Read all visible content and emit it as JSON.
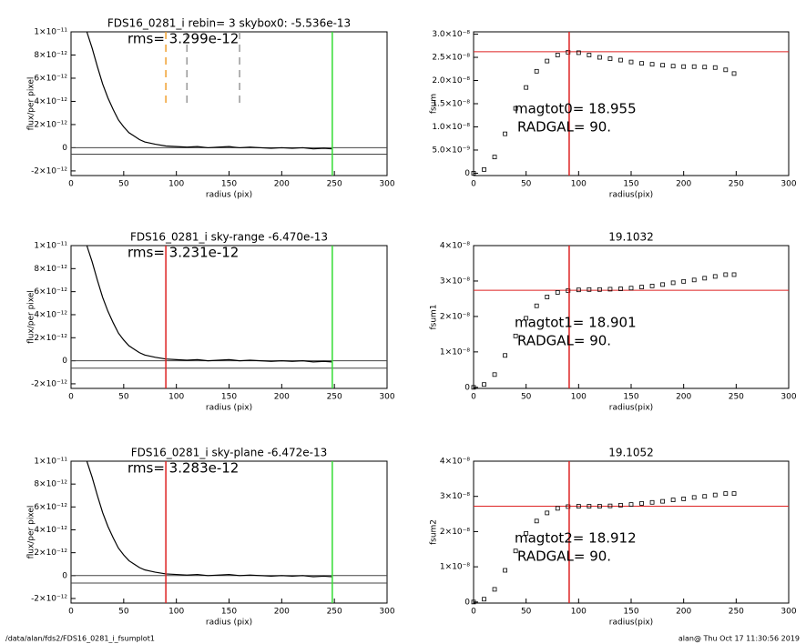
{
  "chart_data": [
    {
      "type": "line",
      "title": "FDS16_0281_i rebin= 3    skybox0: -5.536e-13",
      "xlabel": "radius (pix)",
      "ylabel": "flux/per pixel",
      "annotations": [
        "rms= 3.299e-12"
      ],
      "color": "#000000",
      "x": [
        15,
        20,
        25,
        30,
        35,
        40,
        45,
        50,
        55,
        60,
        65,
        70,
        75,
        80,
        90,
        100,
        110,
        120,
        130,
        140,
        150,
        160,
        170,
        180,
        190,
        200,
        210,
        220,
        230,
        240,
        248
      ],
      "values": [
        1e-11,
        8.6e-12,
        7e-12,
        5.5e-12,
        4.3e-12,
        3.3e-12,
        2.4e-12,
        1.8e-12,
        1.3e-12,
        1e-12,
        7e-13,
        5e-13,
        4e-13,
        3e-13,
        1.5e-13,
        1e-13,
        5e-14,
        1e-13,
        0,
        5e-14,
        1e-13,
        0,
        5e-14,
        0,
        -5e-14,
        0,
        -5e-14,
        0,
        -1e-13,
        -5e-14,
        -1e-13
      ],
      "xlim": [
        0,
        300
      ],
      "xticks": [
        0,
        50,
        100,
        150,
        200,
        250,
        300
      ],
      "ylim": [
        -2.4e-12,
        1e-11
      ],
      "yticks": [
        {
          "value": -2e-12,
          "label": "-2×10⁻¹²"
        },
        0,
        {
          "value": 2e-12,
          "label": "2×10⁻¹²"
        },
        {
          "value": 4e-12,
          "label": "4×10⁻¹²"
        },
        {
          "value": 6e-12,
          "label": "6×10⁻¹²"
        },
        {
          "value": 8e-12,
          "label": "8×10⁻¹²"
        },
        {
          "value": 1e-11,
          "label": "1×10⁻¹¹"
        }
      ],
      "vlines": [
        {
          "x": 90,
          "color": "#f0a030",
          "dash": true
        },
        {
          "x": 110,
          "color": "#999999",
          "dash": true
        },
        {
          "x": 160,
          "color": "#999999",
          "dash": true
        },
        {
          "x": 248,
          "color": "#33dd33",
          "dash": false
        }
      ],
      "hlines": [
        {
          "y": 0,
          "color": "#444444"
        },
        {
          "y": -5.536e-13,
          "color": "#444444"
        }
      ]
    },
    {
      "type": "line",
      "title": "",
      "xlabel": "radius(pix)",
      "ylabel": "fsum",
      "annotations": [
        "magtot0=  18.955",
        "RADGAL=     90."
      ],
      "color": "#000000",
      "marker": "square",
      "x": [
        0,
        10,
        20,
        30,
        40,
        50,
        60,
        70,
        80,
        90,
        100,
        110,
        120,
        130,
        140,
        150,
        160,
        170,
        180,
        190,
        200,
        210,
        220,
        230,
        240,
        248
      ],
      "values": [
        0,
        8e-10,
        3.5e-09,
        8.5e-09,
        1.4e-08,
        1.85e-08,
        2.2e-08,
        2.42e-08,
        2.55e-08,
        2.61e-08,
        2.6e-08,
        2.55e-08,
        2.5e-08,
        2.47e-08,
        2.44e-08,
        2.4e-08,
        2.37e-08,
        2.35e-08,
        2.33e-08,
        2.31e-08,
        2.3e-08,
        2.3e-08,
        2.29e-08,
        2.28e-08,
        2.23e-08,
        2.15e-08
      ],
      "xlim": [
        0,
        300
      ],
      "xticks": [
        0,
        50,
        100,
        150,
        200,
        250,
        300
      ],
      "ylim": [
        -5e-10,
        3.05e-08
      ],
      "yticks": [
        0,
        {
          "value": 5e-09,
          "label": "5.0×10⁻⁹"
        },
        {
          "value": 1e-08,
          "label": "1.0×10⁻⁸"
        },
        {
          "value": 1.5e-08,
          "label": "1.5×10⁻⁸"
        },
        {
          "value": 2e-08,
          "label": "2.0×10⁻⁸"
        },
        {
          "value": 2.5e-08,
          "label": "2.5×10⁻⁸"
        },
        {
          "value": 3e-08,
          "label": "3.0×10⁻⁸"
        }
      ],
      "vlines": [
        {
          "x": 91,
          "color": "#dd2222",
          "dash": false
        }
      ],
      "hlines": [
        {
          "y": 2.62e-08,
          "color": "#dd2222"
        }
      ]
    },
    {
      "type": "line",
      "title": "FDS16_0281_i sky-range -6.470e-13",
      "xlabel": "radius (pix)",
      "ylabel": "flux/per pixel",
      "annotations": [
        "rms= 3.231e-12"
      ],
      "color": "#000000",
      "x": [
        15,
        20,
        25,
        30,
        35,
        40,
        45,
        50,
        55,
        60,
        65,
        70,
        75,
        80,
        90,
        100,
        110,
        120,
        130,
        140,
        150,
        160,
        170,
        180,
        190,
        200,
        210,
        220,
        230,
        240,
        248
      ],
      "values": [
        1e-11,
        8.6e-12,
        7e-12,
        5.5e-12,
        4.3e-12,
        3.3e-12,
        2.4e-12,
        1.8e-12,
        1.3e-12,
        1e-12,
        7e-13,
        5e-13,
        4e-13,
        3e-13,
        1.5e-13,
        1e-13,
        5e-14,
        1e-13,
        0,
        5e-14,
        1e-13,
        0,
        5e-14,
        0,
        -5e-14,
        0,
        -5e-14,
        0,
        -1e-13,
        -5e-14,
        -1e-13
      ],
      "xlim": [
        0,
        300
      ],
      "xticks": [
        0,
        50,
        100,
        150,
        200,
        250,
        300
      ],
      "ylim": [
        -2.4e-12,
        1e-11
      ],
      "yticks": [
        {
          "value": -2e-12,
          "label": "-2×10⁻¹²"
        },
        0,
        {
          "value": 2e-12,
          "label": "2×10⁻¹²"
        },
        {
          "value": 4e-12,
          "label": "4×10⁻¹²"
        },
        {
          "value": 6e-12,
          "label": "6×10⁻¹²"
        },
        {
          "value": 8e-12,
          "label": "8×10⁻¹²"
        },
        {
          "value": 1e-11,
          "label": "1×10⁻¹¹"
        }
      ],
      "vlines": [
        {
          "x": 90,
          "color": "#dd2222",
          "dash": false
        },
        {
          "x": 248,
          "color": "#33dd33",
          "dash": false
        }
      ],
      "hlines": [
        {
          "y": 0,
          "color": "#444444"
        },
        {
          "y": -6.47e-13,
          "color": "#444444"
        }
      ]
    },
    {
      "type": "line",
      "title": "19.1032",
      "xlabel": "radius(pix)",
      "ylabel": "fsum1",
      "annotations": [
        "magtot1=  18.901",
        "RADGAL=     90."
      ],
      "color": "#000000",
      "marker": "square",
      "x": [
        0,
        10,
        20,
        30,
        40,
        50,
        60,
        70,
        80,
        90,
        100,
        110,
        120,
        130,
        140,
        150,
        160,
        170,
        180,
        190,
        200,
        210,
        220,
        230,
        240,
        248
      ],
      "values": [
        0,
        8e-10,
        3.6e-09,
        9e-09,
        1.45e-08,
        1.95e-08,
        2.3e-08,
        2.55e-08,
        2.68e-08,
        2.73e-08,
        2.75e-08,
        2.76e-08,
        2.76e-08,
        2.77e-08,
        2.78e-08,
        2.8e-08,
        2.83e-08,
        2.86e-08,
        2.9e-08,
        2.95e-08,
        2.99e-08,
        3.03e-08,
        3.08e-08,
        3.13e-08,
        3.18e-08,
        3.18e-08
      ],
      "xlim": [
        0,
        300
      ],
      "xticks": [
        0,
        50,
        100,
        150,
        200,
        250,
        300
      ],
      "ylim": [
        -3e-10,
        4e-08
      ],
      "yticks": [
        0,
        {
          "value": 1e-08,
          "label": "1×10⁻⁸"
        },
        {
          "value": 2e-08,
          "label": "2×10⁻⁸"
        },
        {
          "value": 3e-08,
          "label": "3×10⁻⁸"
        },
        {
          "value": 4e-08,
          "label": "4×10⁻⁸"
        }
      ],
      "vlines": [
        {
          "x": 91,
          "color": "#dd2222",
          "dash": false
        }
      ],
      "hlines": [
        {
          "y": 2.74e-08,
          "color": "#dd2222"
        }
      ]
    },
    {
      "type": "line",
      "title": "FDS16_0281_i sky-plane -6.472e-13",
      "xlabel": "radius (pix)",
      "ylabel": "flux/per pixel",
      "annotations": [
        "rms= 3.283e-12"
      ],
      "color": "#000000",
      "x": [
        15,
        20,
        25,
        30,
        35,
        40,
        45,
        50,
        55,
        60,
        65,
        70,
        75,
        80,
        90,
        100,
        110,
        120,
        130,
        140,
        150,
        160,
        170,
        180,
        190,
        200,
        210,
        220,
        230,
        240,
        248
      ],
      "values": [
        1e-11,
        8.6e-12,
        7e-12,
        5.5e-12,
        4.3e-12,
        3.3e-12,
        2.4e-12,
        1.8e-12,
        1.3e-12,
        1e-12,
        7e-13,
        5e-13,
        4e-13,
        3e-13,
        1.5e-13,
        1e-13,
        5e-14,
        1e-13,
        0,
        5e-14,
        1e-13,
        0,
        5e-14,
        0,
        -5e-14,
        0,
        -5e-14,
        0,
        -1e-13,
        -5e-14,
        -1e-13
      ],
      "xlim": [
        0,
        300
      ],
      "xticks": [
        0,
        50,
        100,
        150,
        200,
        250,
        300
      ],
      "ylim": [
        -2.4e-12,
        1e-11
      ],
      "yticks": [
        {
          "value": -2e-12,
          "label": "-2×10⁻¹²"
        },
        0,
        {
          "value": 2e-12,
          "label": "2×10⁻¹²"
        },
        {
          "value": 4e-12,
          "label": "4×10⁻¹²"
        },
        {
          "value": 6e-12,
          "label": "6×10⁻¹²"
        },
        {
          "value": 8e-12,
          "label": "8×10⁻¹²"
        },
        {
          "value": 1e-11,
          "label": "1×10⁻¹¹"
        }
      ],
      "vlines": [
        {
          "x": 90,
          "color": "#dd2222",
          "dash": false
        },
        {
          "x": 248,
          "color": "#33dd33",
          "dash": false
        }
      ],
      "hlines": [
        {
          "y": 0,
          "color": "#444444"
        },
        {
          "y": -6.472e-13,
          "color": "#444444"
        }
      ]
    },
    {
      "type": "line",
      "title": "19.1052",
      "xlabel": "radius(pix)",
      "ylabel": "fsum2",
      "annotations": [
        "magtot2=  18.912",
        "RADGAL=     90."
      ],
      "color": "#000000",
      "marker": "square",
      "x": [
        0,
        10,
        20,
        30,
        40,
        50,
        60,
        70,
        80,
        90,
        100,
        110,
        120,
        130,
        140,
        150,
        160,
        170,
        180,
        190,
        200,
        210,
        220,
        230,
        240,
        248
      ],
      "values": [
        0,
        8e-10,
        3.6e-09,
        9e-09,
        1.45e-08,
        1.95e-08,
        2.3e-08,
        2.53e-08,
        2.66e-08,
        2.71e-08,
        2.72e-08,
        2.72e-08,
        2.72e-08,
        2.73e-08,
        2.75e-08,
        2.77e-08,
        2.8e-08,
        2.83e-08,
        2.86e-08,
        2.9e-08,
        2.93e-08,
        2.97e-08,
        3e-08,
        3.04e-08,
        3.08e-08,
        3.08e-08
      ],
      "xlim": [
        0,
        300
      ],
      "xticks": [
        0,
        50,
        100,
        150,
        200,
        250,
        300
      ],
      "ylim": [
        -3e-10,
        4e-08
      ],
      "yticks": [
        0,
        {
          "value": 1e-08,
          "label": "1×10⁻⁸"
        },
        {
          "value": 2e-08,
          "label": "2×10⁻⁸"
        },
        {
          "value": 3e-08,
          "label": "3×10⁻⁸"
        },
        {
          "value": 4e-08,
          "label": "4×10⁻⁸"
        }
      ],
      "vlines": [
        {
          "x": 91,
          "color": "#dd2222",
          "dash": false
        }
      ],
      "hlines": [
        {
          "y": 2.72e-08,
          "color": "#dd2222"
        }
      ]
    }
  ],
  "footer": {
    "left": "/data/alan/fds2/FDS16_0281_i_fsumplot1",
    "right": "alan@  Thu Oct 17 11:30:56 2019"
  }
}
